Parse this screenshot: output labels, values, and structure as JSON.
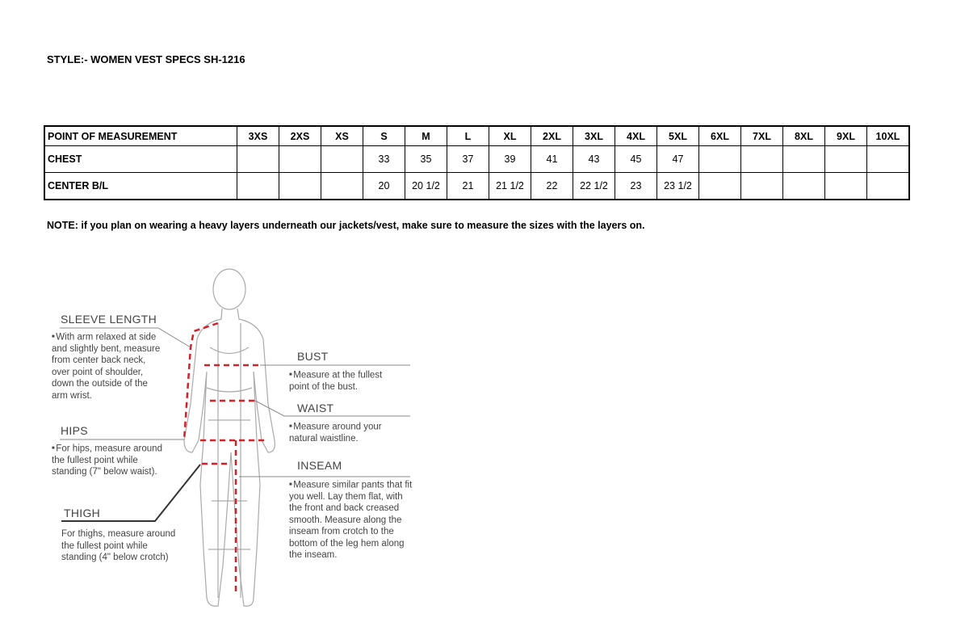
{
  "title": "STYLE:- WOMEN VEST SPECS  SH-1216",
  "table": {
    "headers": [
      "POINT OF MEASUREMENT",
      "3XS",
      "2XS",
      "XS",
      "S",
      "M",
      "L",
      "XL",
      "2XL",
      "3XL",
      "4XL",
      "5XL",
      "6XL",
      "7XL",
      "8XL",
      "9XL",
      "10XL"
    ],
    "rows": [
      [
        "CHEST",
        "",
        "",
        "",
        "33",
        "35",
        "37",
        "39",
        "41",
        "43",
        "45",
        "47",
        "",
        "",
        "",
        "",
        ""
      ],
      [
        "CENTER B/L",
        "",
        "",
        "",
        "20",
        "20 1/2",
        "21",
        "21 1/2",
        "22",
        "22 1/2",
        "23",
        "23 1/2",
        "",
        "",
        "",
        "",
        ""
      ]
    ]
  },
  "note": "NOTE: if you plan on wearing a heavy layers underneath our jackets/vest, make sure to measure the sizes with the layers on.",
  "guide": {
    "sleeve": {
      "label": "SLEEVE LENGTH",
      "text": "With arm relaxed at side and slightly bent, measure from center back neck, over point of shoulder, down the outside of the arm wrist."
    },
    "hips": {
      "label": "HIPS",
      "text": "For hips, measure around the fullest point while standing (7\" below waist)."
    },
    "thigh": {
      "label": "THIGH",
      "text": "For thighs, measure around the fullest point while standing (4\" below crotch)"
    },
    "bust": {
      "label": "BUST",
      "text": "Measure at the fullest point of the bust."
    },
    "waist": {
      "label": "WAIST",
      "text": "Measure around your natural waistline."
    },
    "inseam": {
      "label": "INSEAM",
      "text": "Measure similar pants that fit you well. Lay them flat, with the front and back creased smooth. Measure along the inseam from crotch to the bottom of the leg hem along the inseam."
    }
  },
  "colors": {
    "dash": "#d42027",
    "text": "#444444"
  }
}
